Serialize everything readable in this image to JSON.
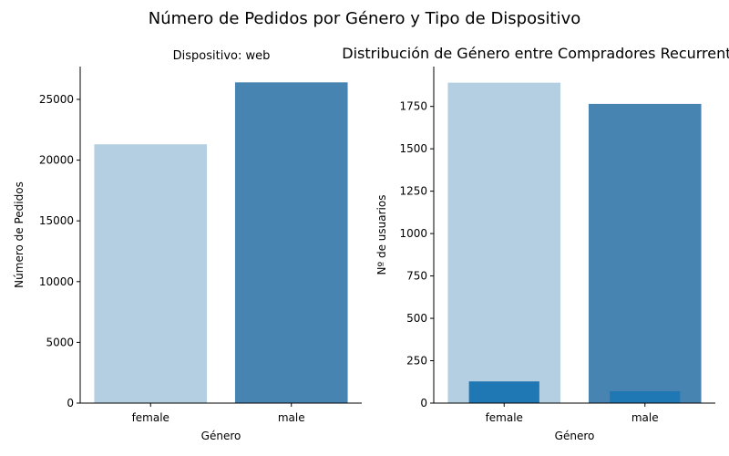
{
  "figure_title": "Número de Pedidos por Género y Tipo de Dispositivo",
  "colors": {
    "light_blue": "#b3cfe1",
    "steel_blue": "#4884b2",
    "overlay_blue": "#1f77b4",
    "axis": "#000000"
  },
  "chart_data": [
    {
      "type": "bar",
      "title": "Dispositivo: web",
      "xlabel": "Género",
      "ylabel": "Número de Pedidos",
      "categories": [
        "female",
        "male"
      ],
      "series": [
        {
          "name": "Pedidos",
          "values": [
            21300,
            26400
          ],
          "colors": [
            "#b3cfe1",
            "#4884b2"
          ]
        }
      ],
      "ylim": [
        0,
        27700
      ],
      "yticks": [
        0,
        5000,
        10000,
        15000,
        20000,
        25000
      ],
      "grid": false
    },
    {
      "type": "bar",
      "title": "Distribución de Género entre Compradores Recurrentes",
      "xlabel": "Género",
      "ylabel": "Nº de usuarios",
      "categories": [
        "female",
        "male"
      ],
      "series": [
        {
          "name": "Usuarios",
          "values": [
            1890,
            1765
          ],
          "colors": [
            "#b3cfe1",
            "#4884b2"
          ]
        },
        {
          "name": "Recurrentes",
          "values": [
            128,
            70
          ],
          "colors": [
            "#1f77b4",
            "#1f77b4"
          ],
          "overlay": true
        }
      ],
      "ylim": [
        0,
        1985
      ],
      "yticks": [
        0,
        250,
        500,
        750,
        1000,
        1250,
        1500,
        1750
      ],
      "grid": false
    }
  ]
}
